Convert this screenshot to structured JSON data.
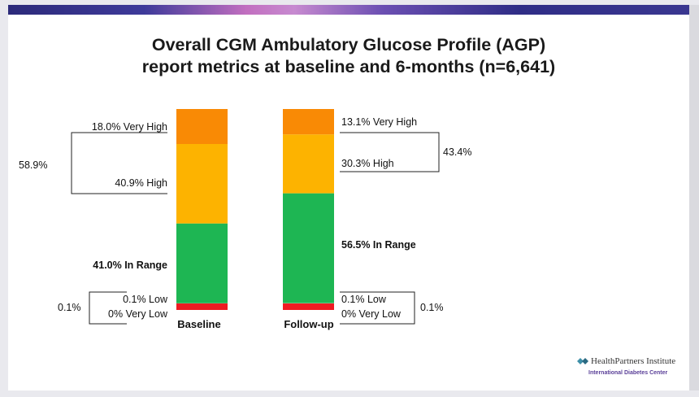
{
  "slide": {
    "title_line1": "Overall CGM Ambulatory Glucose Profile (AGP)",
    "title_line2": "report metrics at baseline and 6-months (n=6,641)"
  },
  "logo": {
    "name": "HealthPartners Institute",
    "subtitle": "International Diabetes Center"
  },
  "colors": {
    "very_high": "#F98A05",
    "high": "#FDB300",
    "in_range": "#1EB653",
    "low_band": "#EE1B22"
  },
  "chart_data": {
    "type": "bar",
    "stacked": true,
    "categories": [
      "Baseline",
      "Follow-up"
    ],
    "series": [
      {
        "name": "Very Low",
        "values": [
          0,
          0
        ]
      },
      {
        "name": "Low",
        "values": [
          0.1,
          0.1
        ]
      },
      {
        "name": "In Range",
        "values": [
          41.0,
          56.5
        ]
      },
      {
        "name": "High",
        "values": [
          40.9,
          30.3
        ]
      },
      {
        "name": "Very High",
        "values": [
          18.0,
          13.1
        ]
      }
    ],
    "labels": {
      "baseline": {
        "very_high": "18.0% Very High",
        "high": "40.9% High",
        "in_range": "41.0% In Range",
        "low": "0.1% Low",
        "very_low": "0% Very Low",
        "above_range_total": "58.9%",
        "below_range_total": "0.1%"
      },
      "followup": {
        "very_high": "13.1% Very High",
        "high": "30.3% High",
        "in_range": "56.5% In Range",
        "low": "0.1% Low",
        "very_low": "0% Very Low",
        "above_range_total": "43.4%",
        "below_range_total": "0.1%"
      }
    }
  }
}
